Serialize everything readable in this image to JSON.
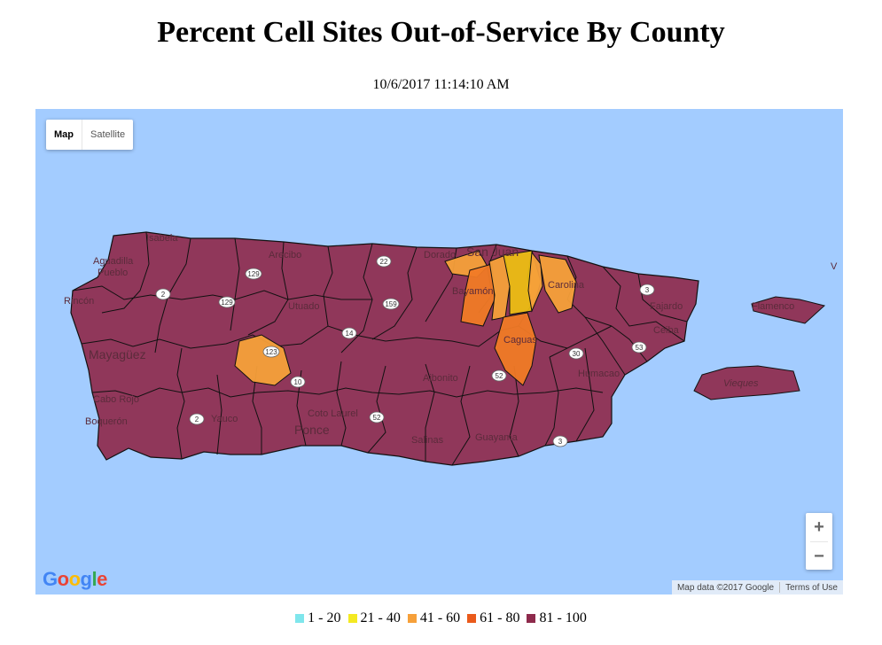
{
  "title": "Percent Cell Sites Out-of-Service By County",
  "timestamp": "10/6/2017 11:14:10 AM",
  "map_controls": {
    "map_label": "Map",
    "satellite_label": "Satellite",
    "zoom_in_label": "+",
    "zoom_out_label": "−",
    "google_logo": [
      "G",
      "o",
      "o",
      "g",
      "l",
      "e"
    ],
    "google_logo_colors": [
      "#4285f4",
      "#ea4335",
      "#fbbc05",
      "#4285f4",
      "#34a853",
      "#ea4335"
    ],
    "map_data": "Map data ©2017 Google",
    "terms": "Terms of Use"
  },
  "colors": {
    "water": "#a3ccff",
    "land_81_100": "#8e2a4c",
    "land_61_80": "#f06a26",
    "land_41_60": "#f6a03a",
    "land_21_40": "#f1c40f",
    "border": "#111111"
  },
  "place_labels": {
    "isabela": "Isabela",
    "aguadilla": "Aguadilla",
    "pueblo": "Pueblo",
    "rincon": "Rincón",
    "mayaguez": "Mayagüez",
    "cabo_rojo": "Cabo Rojo",
    "boqueron": "Boquerón",
    "yauco": "Yauco",
    "arecibo": "Arecibo",
    "utuado": "Utuado",
    "coto_laurel": "Coto Laurel",
    "ponce": "Ponce",
    "dorado": "Dorado",
    "san_juan": "San Juan",
    "bayamon": "Bayamón",
    "carolina": "Carolina",
    "caguas": "Caguas",
    "fajardo": "Fajardo",
    "ceiba": "Ceiba",
    "humacao": "Humacao",
    "aibonito": "Aibonito",
    "salinas": "Salinas",
    "guayama": "Guayama",
    "flamenco": "Flamenco",
    "vieques": "Vieques",
    "edge_v": "V"
  },
  "road_shields": [
    "129",
    "22",
    "2",
    "129",
    "123",
    "10",
    "159",
    "52",
    "14",
    "2",
    "3",
    "30",
    "52",
    "53",
    "3"
  ],
  "legend": [
    {
      "label": "1 - 20",
      "color": "#7fe6ec"
    },
    {
      "label": "21 - 40",
      "color": "#f4e922"
    },
    {
      "label": "41 - 60",
      "color": "#f6a03a"
    },
    {
      "label": "61 - 80",
      "color": "#ea5a1b"
    },
    {
      "label": "81 - 100",
      "color": "#8e2a4c"
    }
  ]
}
